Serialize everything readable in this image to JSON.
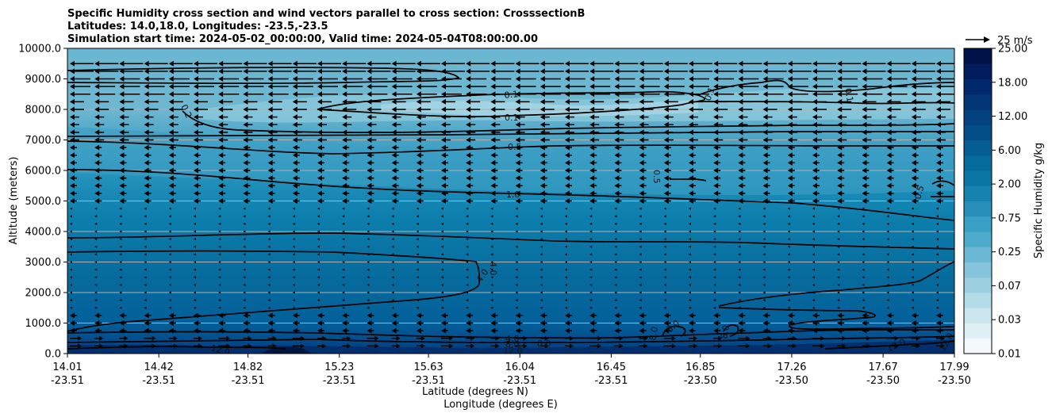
{
  "chart_data": {
    "type": "contour",
    "title_lines": [
      "Specific Humidity cross section and wind vectors parallel to cross section: CrosssectionB",
      "Latitudes: 14.0,18.0, Longitudes: -23.5,-23.5",
      "Simulation start time: 2024-05-02_00:00:00, Valid time: 2024-05-04T08:00:00.00"
    ],
    "ylabel": "Altitude (meters)",
    "xlabel_lat": "Latitude (degrees N)",
    "xlabel_lon": "Longitude (degrees E)",
    "ylim": [
      0,
      10000
    ],
    "y_ticks": [
      "0.0",
      "1000.0",
      "2000.0",
      "3000.0",
      "4000.0",
      "5000.0",
      "6000.0",
      "7000.0",
      "8000.0",
      "9000.0",
      "10000.0"
    ],
    "x_ticks_lat": [
      "14.01",
      "14.42",
      "14.82",
      "15.23",
      "15.63",
      "16.04",
      "16.45",
      "16.85",
      "17.26",
      "17.67",
      "17.99"
    ],
    "x_ticks_lon": [
      "-23.51",
      "-23.51",
      "-23.51",
      "-23.51",
      "-23.51",
      "-23.51",
      "-23.51",
      "-23.50",
      "-23.50",
      "-23.50",
      "-23.50"
    ],
    "colorbar": {
      "label": "Specific Humidity g/kg",
      "ticks": [
        "0.01",
        "0.03",
        "0.07",
        "0.25",
        "0.75",
        "2.00",
        "6.00",
        "12.00",
        "18.00",
        "25.00"
      ]
    },
    "quiver_key": "25 m/s",
    "contour_labels": [
      "0.1",
      "0.1",
      "0.1",
      "0.1",
      "0.2",
      "0.5",
      "0.5",
      "0.5",
      "1.0",
      "4.0",
      "4.0",
      "4.0",
      "8.0",
      "8.0",
      "8.0",
      "8.0",
      "8.0",
      "12.0",
      "12.0",
      "12.0",
      "12.0"
    ]
  }
}
